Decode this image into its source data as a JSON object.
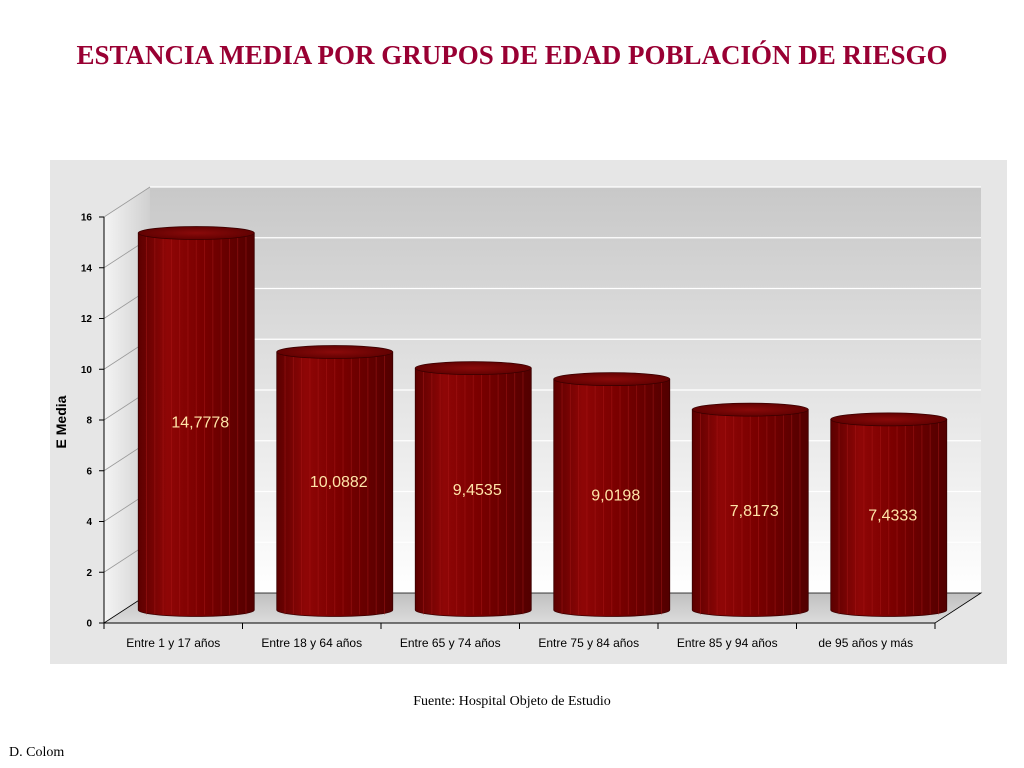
{
  "slide": {
    "title": "ESTANCIA MEDIA POR GRUPOS DE EDAD POBLACIÓN DE RIESGO",
    "source": "Fuente: Hospital Objeto de Estudio",
    "author": "D. Colom"
  },
  "chart_data": {
    "type": "bar",
    "title": "",
    "xlabel": "",
    "ylabel": "E Media",
    "categories": [
      "Entre 1 y 17 años",
      "Entre 18 y 64 años",
      "Entre 65 y 74 años",
      "Entre 75 y 84 años",
      "Entre 85 y 94 años",
      "de 95 años y más"
    ],
    "values": [
      14.7778,
      10.0882,
      9.4535,
      9.0198,
      7.8173,
      7.4333
    ],
    "data_labels": [
      "14,7778",
      "10,0882",
      "9,4535",
      "9,0198",
      "7,8173",
      "7,4333"
    ],
    "ylim": [
      0,
      16
    ],
    "yticks": [
      0,
      2,
      4,
      6,
      8,
      10,
      12,
      14,
      16
    ],
    "grid": true,
    "style": "3d-cylinder",
    "colors": {
      "bar": "#8b0000",
      "bar_dark": "#5a0000",
      "data_label": "#ffe4a8",
      "title": "#990033"
    }
  }
}
